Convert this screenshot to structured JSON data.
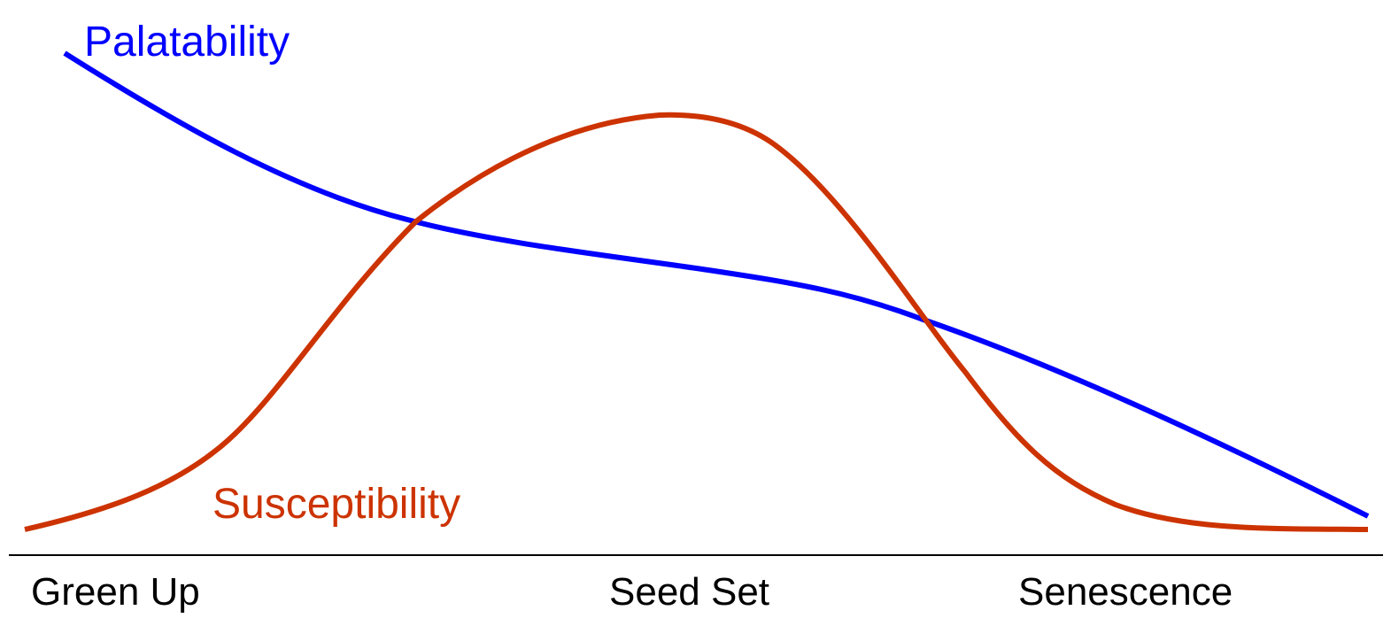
{
  "curves": [
    {
      "label": "Palatability"
    },
    {
      "label": "Susceptibility"
    }
  ],
  "stages": [
    "Green Up",
    "Seed Set",
    "Senescence"
  ]
}
